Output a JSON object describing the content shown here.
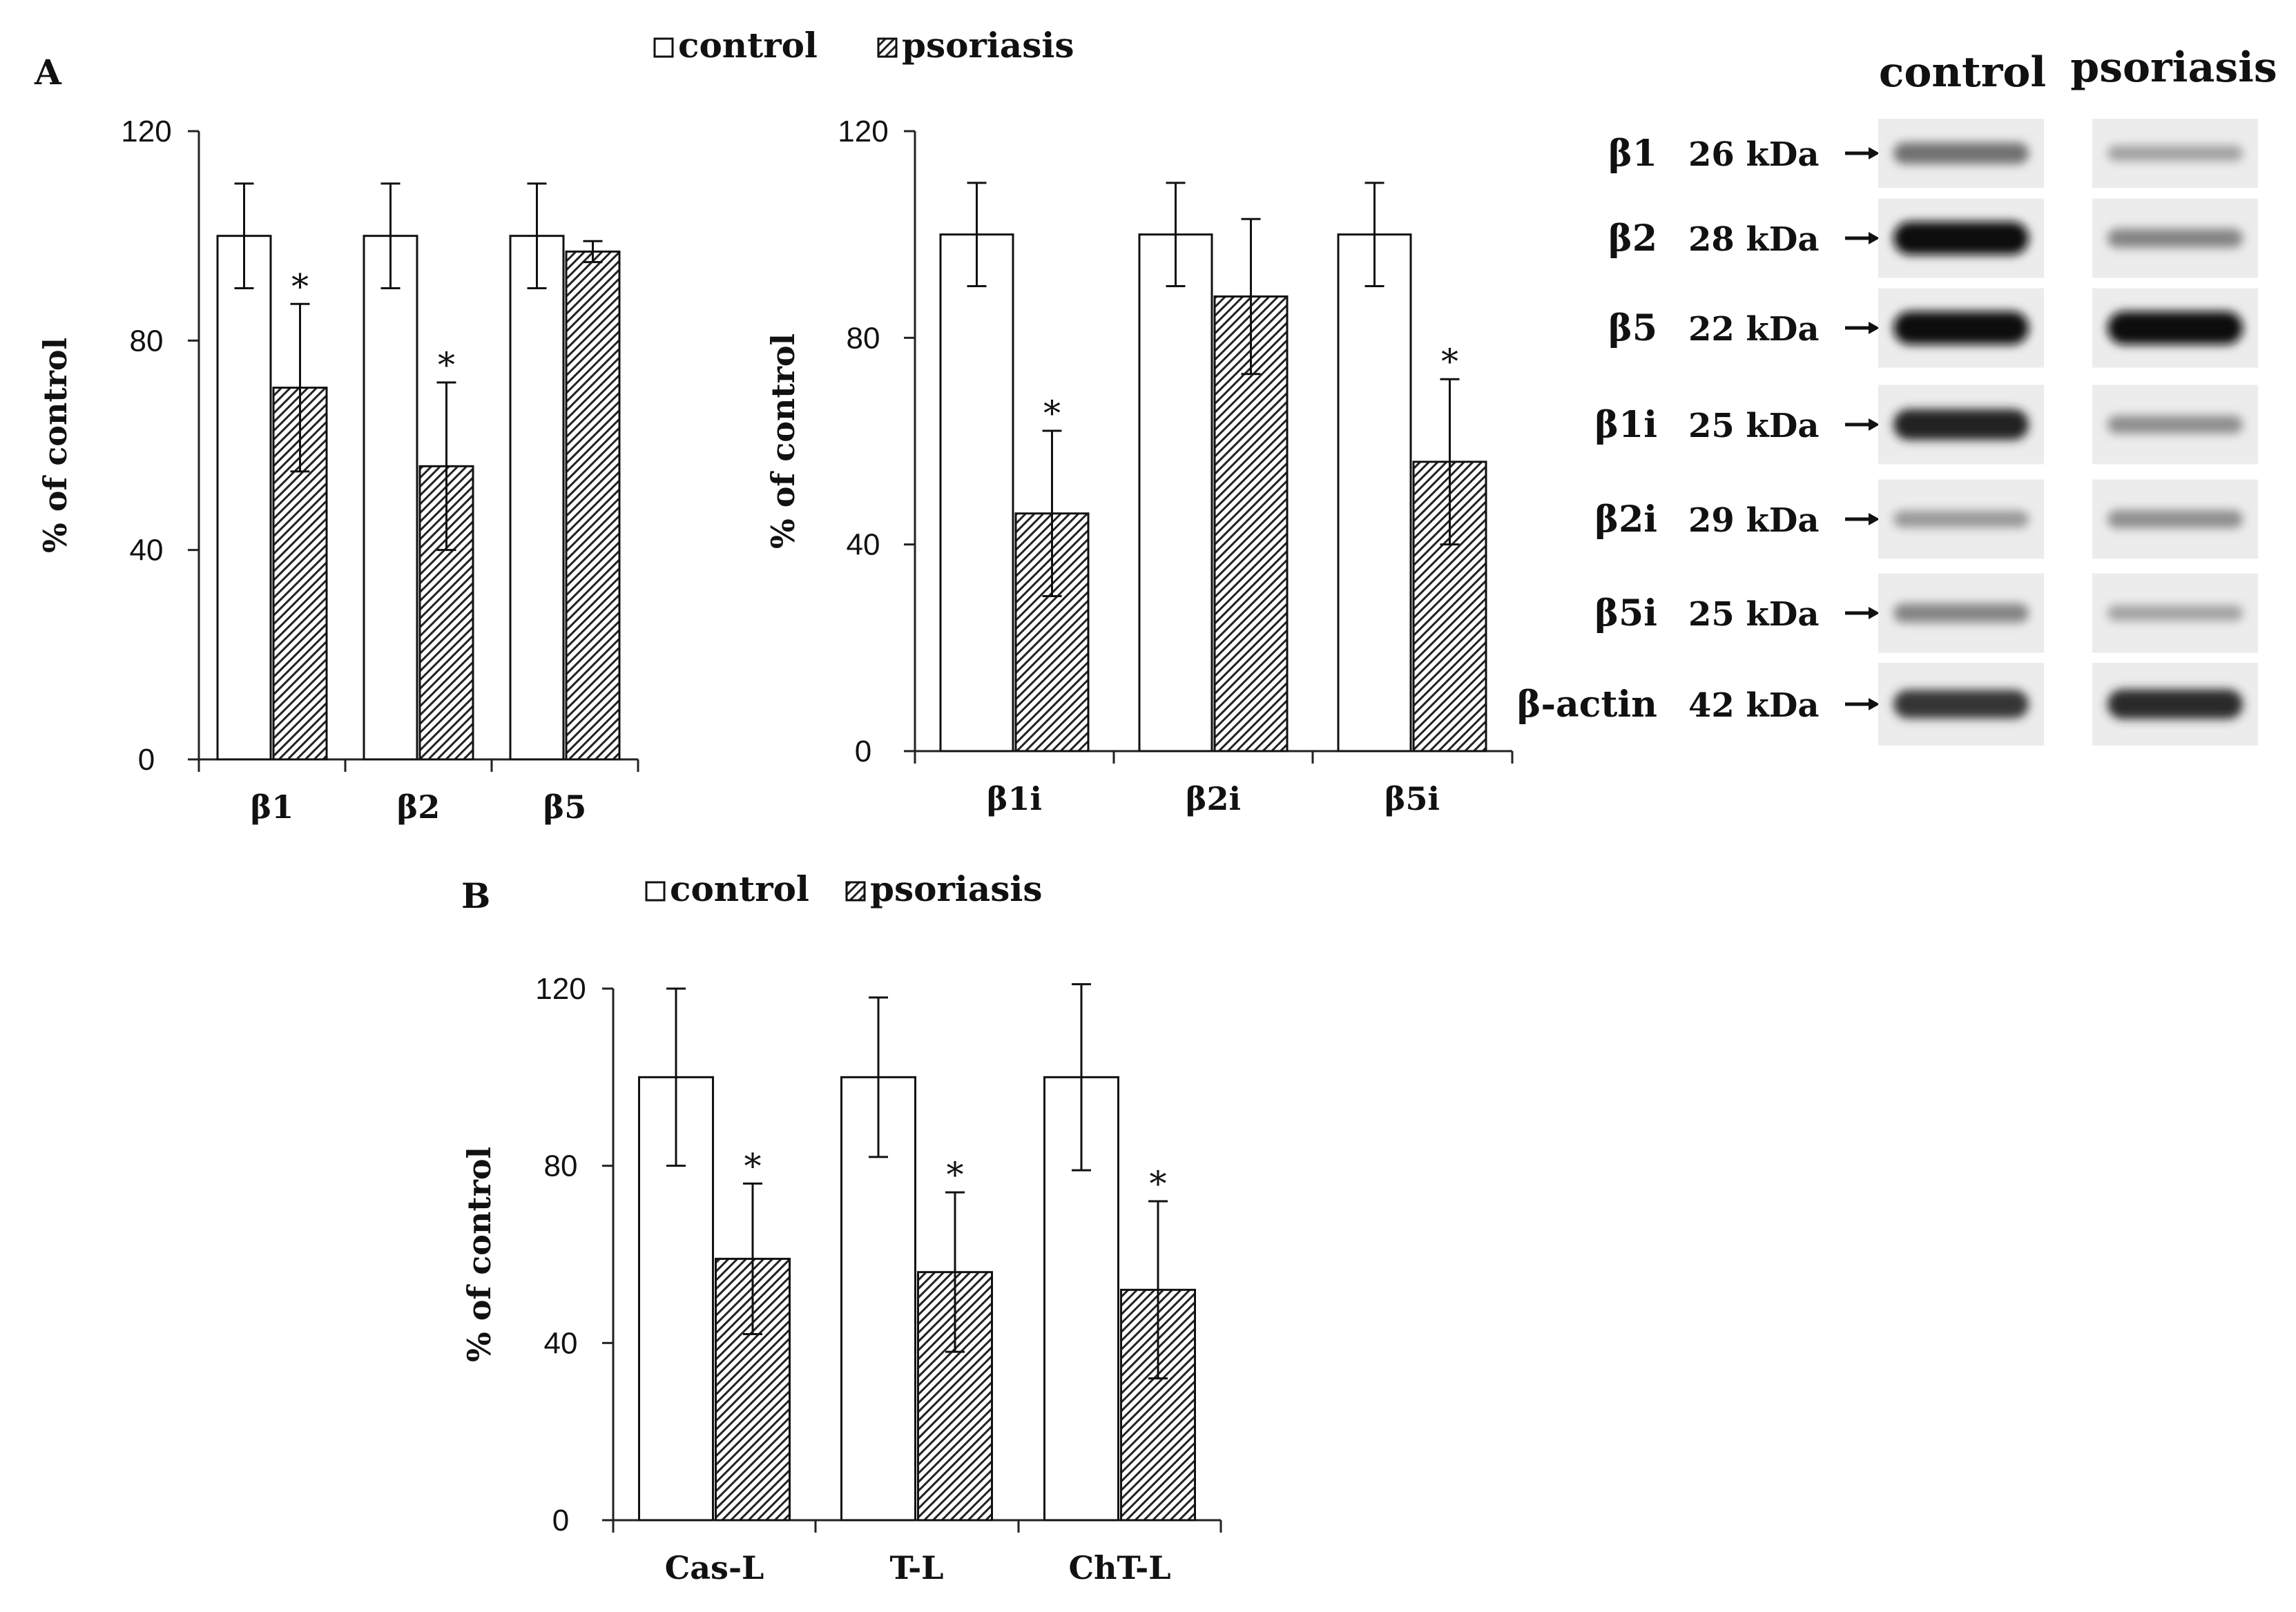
{
  "colors": {
    "ink": "#111111",
    "hatch_fill": "#555555",
    "blot_bg": "#eeeeee",
    "band_dark": "#141414"
  },
  "chart_data": [
    {
      "id": "A1",
      "type": "bar",
      "panel_label": "A",
      "ylabel": "% of control",
      "ylim": [
        0,
        120
      ],
      "yticks": [
        0,
        40,
        80,
        120
      ],
      "categories": [
        "β1",
        "β2",
        "β5"
      ],
      "series": [
        {
          "name": "control",
          "values": [
            100,
            100,
            100
          ],
          "errors": [
            10,
            10,
            10
          ]
        },
        {
          "name": "psoriasis",
          "values": [
            71,
            56,
            97
          ],
          "errors": [
            16,
            16,
            2
          ]
        }
      ],
      "significance": [
        false,
        true,
        false,
        true,
        false,
        false
      ],
      "annotation": "*"
    },
    {
      "id": "A2",
      "type": "bar",
      "ylabel": "% of control",
      "ylim": [
        0,
        120
      ],
      "yticks": [
        0,
        40,
        80,
        120
      ],
      "categories": [
        "β1i",
        "β2i",
        "β5i"
      ],
      "series": [
        {
          "name": "control",
          "values": [
            100,
            100,
            100
          ],
          "errors": [
            10,
            10,
            10
          ]
        },
        {
          "name": "psoriasis",
          "values": [
            46,
            88,
            56
          ],
          "errors": [
            16,
            15,
            16
          ]
        }
      ],
      "significance": [
        false,
        true,
        false,
        false,
        false,
        true
      ],
      "annotation": "*"
    },
    {
      "id": "B",
      "type": "bar",
      "panel_label": "B",
      "ylabel": "% of control",
      "ylim": [
        0,
        120
      ],
      "yticks": [
        0,
        40,
        80,
        120
      ],
      "categories": [
        "Cas-L",
        "T-L",
        "ChT-L"
      ],
      "series": [
        {
          "name": "control",
          "values": [
            100,
            100,
            100
          ],
          "errors": [
            20,
            18,
            21
          ]
        },
        {
          "name": "psoriasis",
          "values": [
            59,
            56,
            52
          ],
          "errors": [
            17,
            18,
            20
          ]
        }
      ],
      "significance": [
        false,
        true,
        false,
        true,
        false,
        true
      ],
      "annotation": "*"
    }
  ],
  "legend_a": {
    "control": "control",
    "psoriasis": "psoriasis"
  },
  "legend_b": {
    "control": "control",
    "psoriasis": "psoriasis"
  },
  "blot": {
    "columns": [
      "control",
      "psoriasis"
    ],
    "rows": [
      {
        "protein": "β1",
        "mw": "26 kDa",
        "control_intensity": 0.5,
        "psoriasis_intensity": 0.25
      },
      {
        "protein": "β2",
        "mw": "28 kDa",
        "control_intensity": 1.0,
        "psoriasis_intensity": 0.4
      },
      {
        "protein": "β5",
        "mw": "22 kDa",
        "control_intensity": 1.0,
        "psoriasis_intensity": 1.0
      },
      {
        "protein": "β1i",
        "mw": "25 kDa",
        "control_intensity": 0.9,
        "psoriasis_intensity": 0.35
      },
      {
        "protein": "β2i",
        "mw": "29 kDa",
        "control_intensity": 0.3,
        "psoriasis_intensity": 0.35
      },
      {
        "protein": "β5i",
        "mw": "25 kDa",
        "control_intensity": 0.4,
        "psoriasis_intensity": 0.25
      },
      {
        "protein": "β-actin",
        "mw": "42 kDa",
        "control_intensity": 0.8,
        "psoriasis_intensity": 0.85
      }
    ]
  }
}
